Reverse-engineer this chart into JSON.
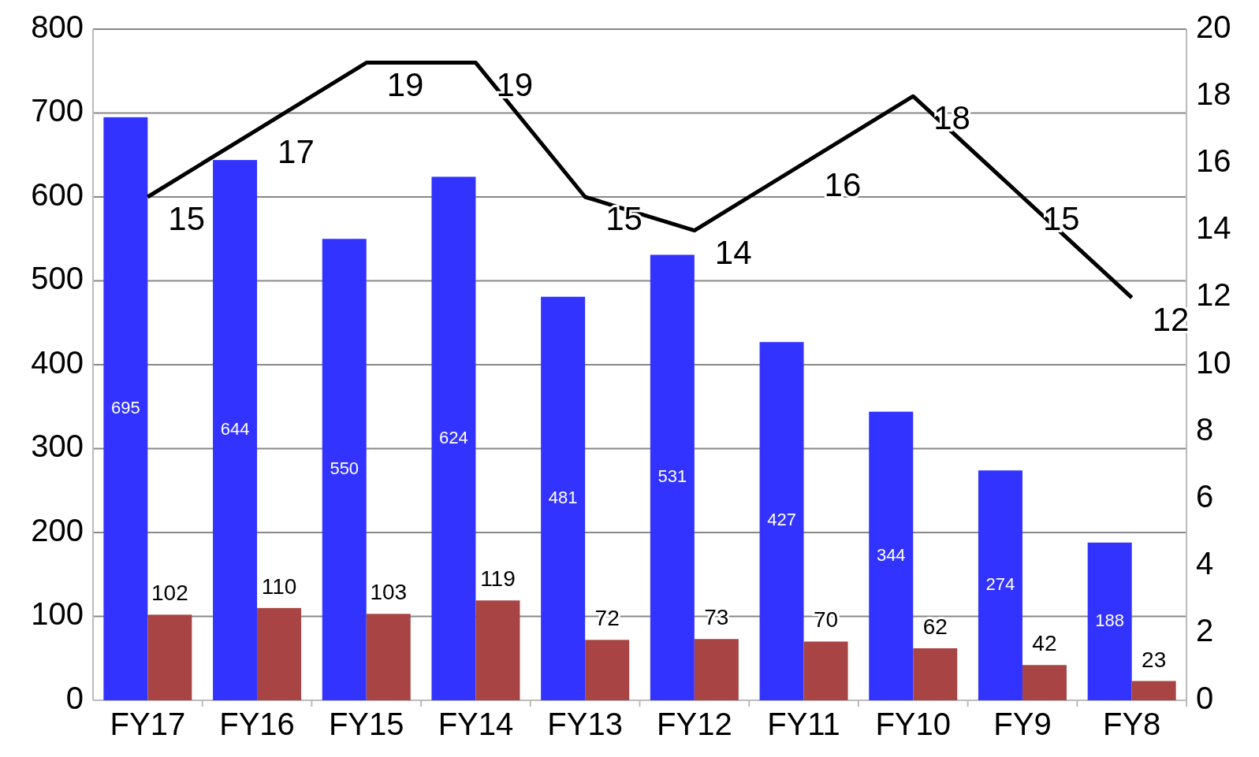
{
  "chart_data": {
    "type": "bar",
    "categories": [
      "FY17",
      "FY16",
      "FY15",
      "FY14",
      "FY13",
      "FY12",
      "FY11",
      "FY10",
      "FY9",
      "FY8"
    ],
    "series": [
      {
        "color": "#3333ff",
        "values": [
          695,
          644,
          550,
          624,
          481,
          531,
          427,
          344,
          274,
          188
        ]
      },
      {
        "color": "#a84444",
        "values": [
          102,
          110,
          103,
          119,
          72,
          73,
          70,
          62,
          42,
          23
        ]
      },
      {
        "type": "line",
        "color": "#000000",
        "axis": "y2",
        "values": [
          15,
          17,
          19,
          19,
          15,
          14,
          16,
          18,
          15,
          12
        ]
      }
    ],
    "ylim": [
      0,
      800
    ],
    "yticks": [
      0,
      100,
      200,
      300,
      400,
      500,
      600,
      700,
      800
    ],
    "y2lim": [
      0,
      20
    ],
    "y2ticks": [
      0,
      2,
      4,
      6,
      8,
      10,
      12,
      14,
      16,
      18,
      20
    ],
    "grid": "y",
    "data_labels": true,
    "marker": "none"
  }
}
